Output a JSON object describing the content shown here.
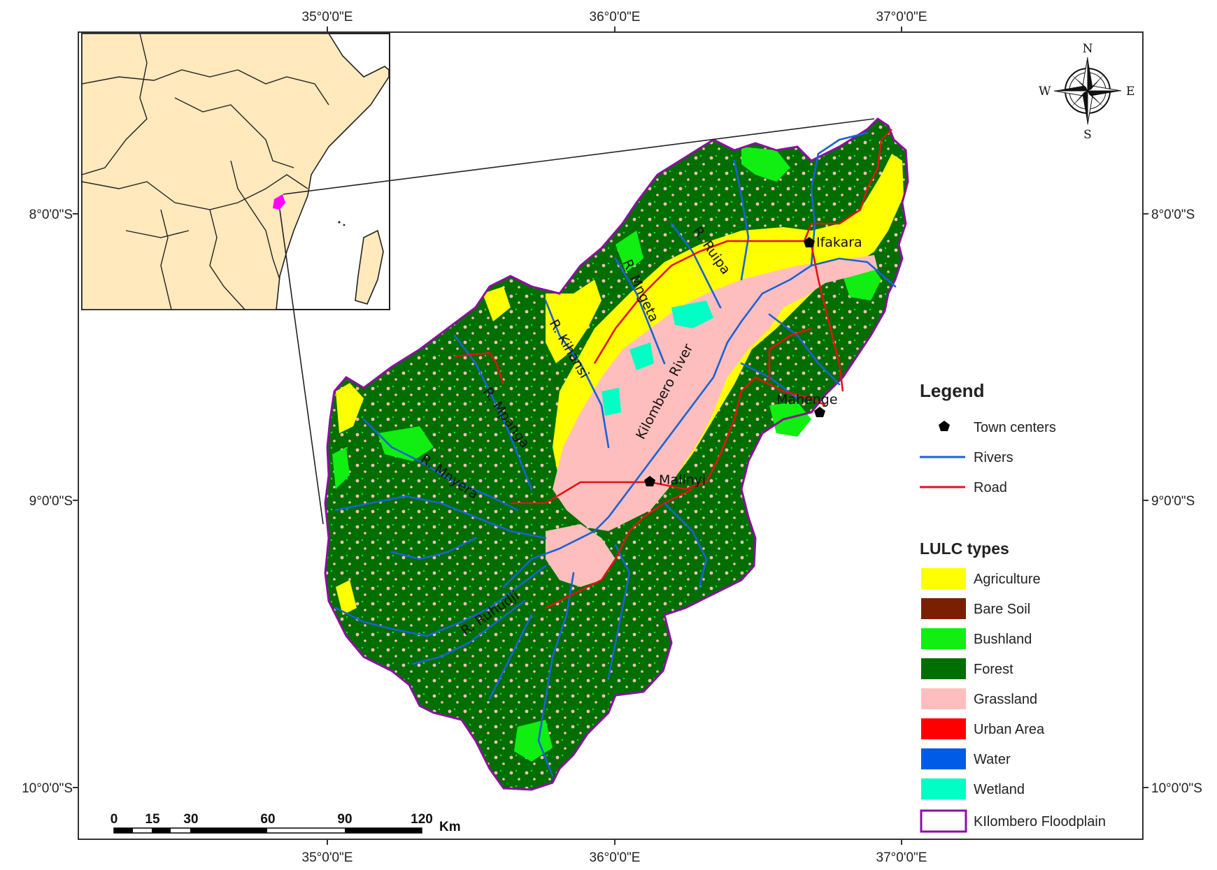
{
  "graticule": {
    "top": [
      "35°0'0\"E",
      "36°0'0\"E",
      "37°0'0\"E"
    ],
    "bottom": [
      "35°0'0\"E",
      "36°0'0\"E",
      "37°0'0\"E"
    ],
    "left": [
      "8°0'0\"S",
      "9°0'0\"S",
      "10°0'0\"S"
    ],
    "right": [
      "8°0'0\"S",
      "9°0'0\"S",
      "10°0'0\"S"
    ]
  },
  "compass": {
    "n": "N",
    "s": "S",
    "e": "E",
    "w": "W"
  },
  "towns": [
    "Ifakara",
    "Mahenge",
    "Malinyi"
  ],
  "rivers": {
    "kilombero": "Kilombero River",
    "mngeta": "R. Mngeta",
    "ruipa": "R. Ruipa",
    "kihansi": "R. Kihansi",
    "mpanga": "R. Mpanga",
    "mnyera": "R. Mnyera",
    "ruhudji": "R. Ruhudji"
  },
  "legend": {
    "title": "Legend",
    "town_centers": "Town centers",
    "rivers": "Rivers",
    "road": "Road",
    "lulc_title": "LULC types",
    "classes": [
      {
        "label": "Agriculture",
        "color": "#ffff00"
      },
      {
        "label": "Bare Soil",
        "color": "#7a2000"
      },
      {
        "label": "Bushland",
        "color": "#11ee11"
      },
      {
        "label": "Forest",
        "color": "#006e00"
      },
      {
        "label": "Grassland",
        "color": "#ffbebe"
      },
      {
        "label": "Urban Area",
        "color": "#ff0000"
      },
      {
        "label": "Water",
        "color": "#005ce6"
      },
      {
        "label": "Wetland",
        "color": "#00ffc5"
      }
    ],
    "floodplain": "KIlombero Floodplain",
    "floodplain_color": "#8b0fa0"
  },
  "scale_bar": {
    "ticks": [
      "0",
      "15",
      "30",
      "60",
      "90",
      "120"
    ],
    "unit": "Km"
  },
  "colors": {
    "inset_land": "#ffe9bd",
    "highlight": "#ff00ff",
    "river": "#1a62d6",
    "road": "#e01414"
  }
}
